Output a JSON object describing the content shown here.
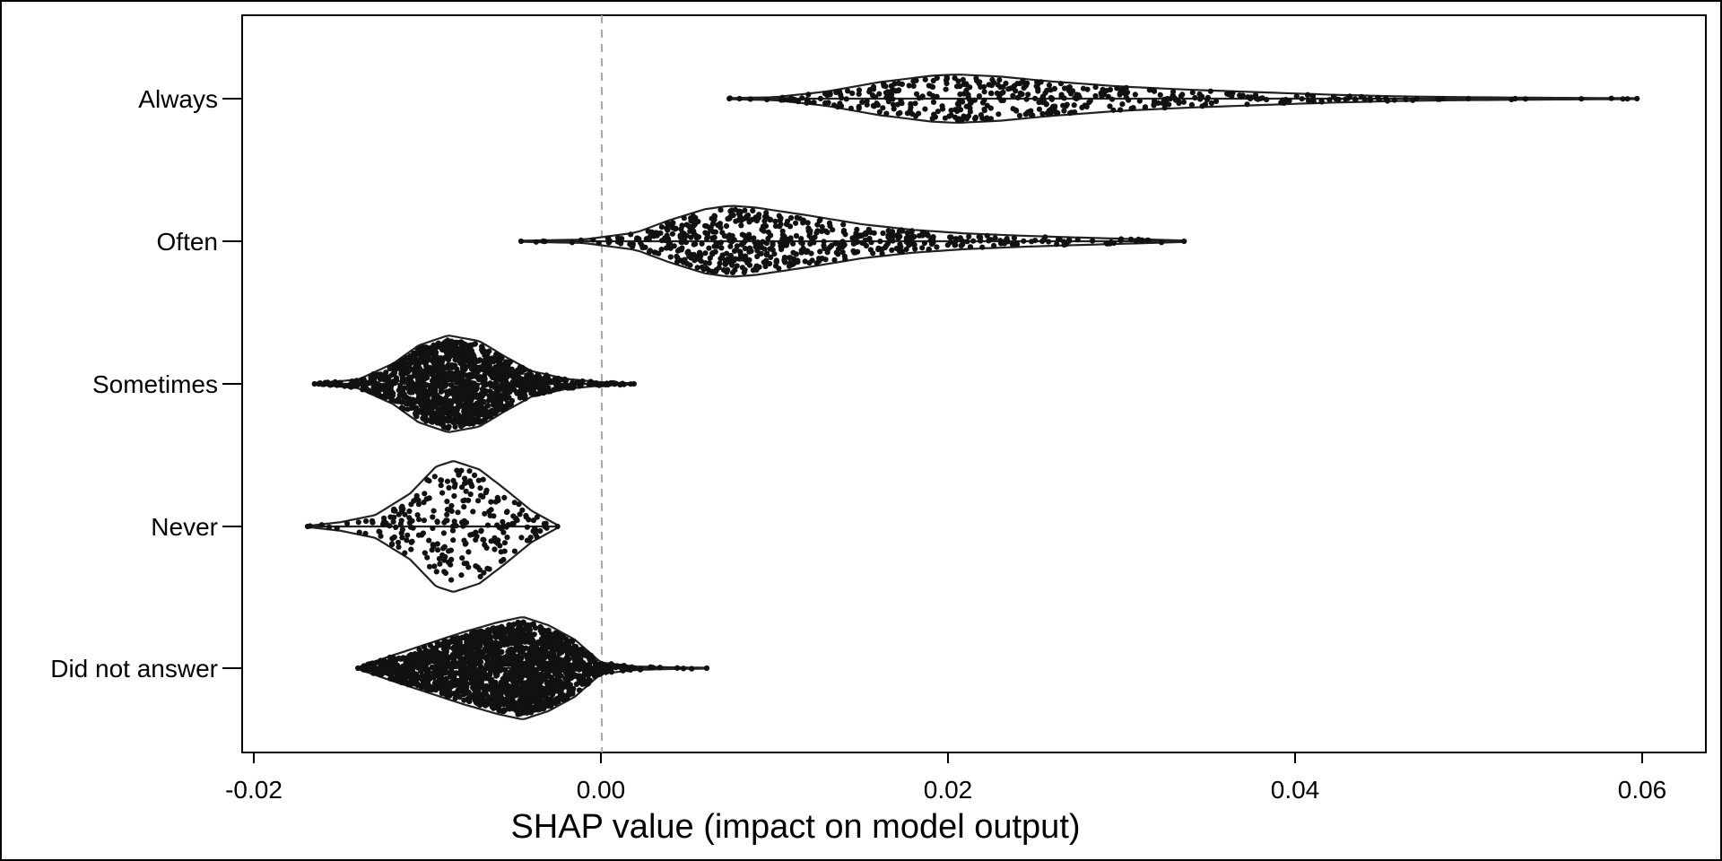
{
  "chart_data": {
    "type": "violin",
    "title": "",
    "xlabel": "SHAP value (impact on model output)",
    "ylabel": "",
    "xlim": [
      -0.0215,
      0.0635
    ],
    "x_ticks": [
      -0.02,
      0.0,
      0.02,
      0.04,
      0.06
    ],
    "x_tick_labels": [
      "-0.02",
      "0.00",
      "0.02",
      "0.04",
      "0.06"
    ],
    "reference_line": {
      "x": 0.0,
      "style": "dashed",
      "color": "#aaaaaa"
    },
    "grid": false,
    "legend": "none",
    "categories": [
      "Always",
      "Often",
      "Sometimes",
      "Never",
      "Did not answer"
    ],
    "series": [
      {
        "category": "Always",
        "min": 0.0074,
        "max": 0.0597,
        "peak": 0.0205,
        "half_width_at_peak": 0.17,
        "n_points": 440,
        "density_profile": [
          [
            0.0074,
            0.004
          ],
          [
            0.01,
            0.01
          ],
          [
            0.013,
            0.05
          ],
          [
            0.016,
            0.115
          ],
          [
            0.019,
            0.16
          ],
          [
            0.0205,
            0.17
          ],
          [
            0.023,
            0.155
          ],
          [
            0.026,
            0.12
          ],
          [
            0.03,
            0.085
          ],
          [
            0.034,
            0.062
          ],
          [
            0.038,
            0.045
          ],
          [
            0.042,
            0.028
          ],
          [
            0.046,
            0.016
          ],
          [
            0.05,
            0.01
          ],
          [
            0.055,
            0.006
          ],
          [
            0.0597,
            0.003
          ]
        ]
      },
      {
        "category": "Often",
        "min": -0.0046,
        "max": 0.0336,
        "peak": 0.0075,
        "half_width_at_peak": 0.25,
        "n_points": 620,
        "density_profile": [
          [
            -0.0046,
            0.004
          ],
          [
            -0.001,
            0.012
          ],
          [
            0.002,
            0.06
          ],
          [
            0.004,
            0.15
          ],
          [
            0.006,
            0.225
          ],
          [
            0.0075,
            0.25
          ],
          [
            0.009,
            0.235
          ],
          [
            0.012,
            0.18
          ],
          [
            0.015,
            0.12
          ],
          [
            0.018,
            0.08
          ],
          [
            0.021,
            0.055
          ],
          [
            0.024,
            0.04
          ],
          [
            0.027,
            0.028
          ],
          [
            0.03,
            0.018
          ],
          [
            0.0336,
            0.005
          ]
        ]
      },
      {
        "category": "Sometimes",
        "min": -0.0165,
        "max": 0.0019,
        "peak": -0.0088,
        "half_width_at_peak": 0.34,
        "n_points": 1400,
        "density_profile": [
          [
            -0.0165,
            0.004
          ],
          [
            -0.014,
            0.03
          ],
          [
            -0.012,
            0.14
          ],
          [
            -0.0105,
            0.27
          ],
          [
            -0.0088,
            0.34
          ],
          [
            -0.007,
            0.3
          ],
          [
            -0.0055,
            0.19
          ],
          [
            -0.004,
            0.09
          ],
          [
            -0.002,
            0.035
          ],
          [
            0.0,
            0.012
          ],
          [
            0.0019,
            0.004
          ]
        ]
      },
      {
        "category": "Never",
        "min": -0.0169,
        "max": -0.0025,
        "peak": -0.0085,
        "half_width_at_peak": 0.46,
        "n_points": 260,
        "density_profile": [
          [
            -0.0169,
            0.004
          ],
          [
            -0.015,
            0.03
          ],
          [
            -0.013,
            0.08
          ],
          [
            -0.011,
            0.23
          ],
          [
            -0.0095,
            0.42
          ],
          [
            -0.0085,
            0.46
          ],
          [
            -0.007,
            0.4
          ],
          [
            -0.0055,
            0.26
          ],
          [
            -0.004,
            0.11
          ],
          [
            -0.0025,
            0.01
          ]
        ]
      },
      {
        "category": "Did not answer",
        "min": -0.014,
        "max": 0.0061,
        "peak": -0.0045,
        "half_width_at_peak": 0.36,
        "n_points": 3000,
        "density_profile": [
          [
            -0.014,
            0.006
          ],
          [
            -0.012,
            0.09
          ],
          [
            -0.01,
            0.17
          ],
          [
            -0.008,
            0.25
          ],
          [
            -0.006,
            0.32
          ],
          [
            -0.0045,
            0.36
          ],
          [
            -0.003,
            0.3
          ],
          [
            -0.0015,
            0.2
          ],
          [
            0.0,
            0.04
          ],
          [
            0.002,
            0.012
          ],
          [
            0.004,
            0.006
          ],
          [
            0.0061,
            0.003
          ]
        ]
      }
    ]
  }
}
